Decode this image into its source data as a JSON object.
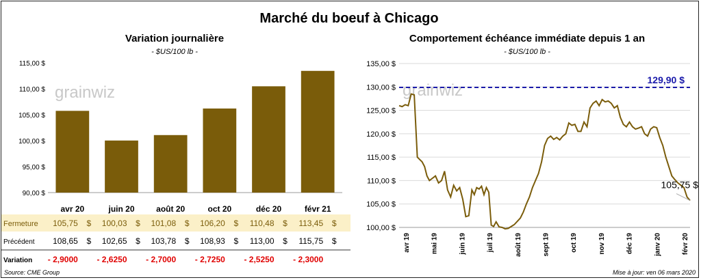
{
  "header": {
    "title": "Marché du boeuf à Chicago",
    "source": "Source: CME Group",
    "updated": "Mise à jour: ven 06 mars 2020",
    "watermark": "grainwiz"
  },
  "chart_data": [
    {
      "type": "bar",
      "title": "Variation journalière",
      "subtitle": "- $US/100 lb -",
      "categories": [
        "avr 20",
        "juin 20",
        "août 20",
        "oct 20",
        "déc 20",
        "févr 21"
      ],
      "values": [
        105.75,
        100.03,
        101.08,
        106.2,
        110.48,
        113.45
      ],
      "ylim": [
        90,
        115
      ],
      "y_ticks": [
        "90,00 $",
        "95,00 $",
        "100,00 $",
        "105,00 $",
        "110,00 $",
        "115,00 $"
      ],
      "bar_color": "#7A5C0A",
      "grid": false
    },
    {
      "type": "table",
      "rows": [
        {
          "label": "Fermeture",
          "values": [
            "105,75",
            "100,03",
            "101,08",
            "106,20",
            "110,48",
            "113,45"
          ],
          "unit": "$",
          "color": "#7A5C0A",
          "background": "#FBF0C8"
        },
        {
          "label": "Précédent",
          "values": [
            "108,65",
            "102,65",
            "103,78",
            "108,93",
            "113,00",
            "115,75"
          ],
          "unit": "$",
          "color": "#000000"
        },
        {
          "label": "Variation",
          "values": [
            "- 2,9000",
            "- 2,6250",
            "- 2,7000",
            "- 2,7250",
            "- 2,5250",
            "- 2,3000"
          ],
          "unit": "",
          "color": "#E00000"
        }
      ]
    },
    {
      "type": "line",
      "title": "Comportement  échéance immédiate depuis 1 an",
      "subtitle": "- $US/100 lb -",
      "ylim": [
        100,
        135
      ],
      "y_ticks": [
        "100,00 $",
        "105,00 $",
        "110,00 $",
        "115,00 $",
        "120,00 $",
        "125,00 $",
        "130,00 $",
        "135,00 $"
      ],
      "x_ticks": [
        "avr 19",
        "mai 19",
        "juin 19",
        "juil 19",
        "août 19",
        "sept 19",
        "oct 19",
        "nov 19",
        "déc 19",
        "janv 20",
        "févr 20"
      ],
      "grid": true,
      "series": [
        {
          "color": "#7A5C0A",
          "x": [
            0,
            0.5,
            1,
            1.5,
            2,
            2.5,
            3,
            3.4,
            3.8,
            4.2,
            4.6,
            5,
            5.5,
            6,
            6.5,
            7,
            7.5,
            8,
            8.5,
            9,
            9.5,
            10,
            10.5,
            11,
            11.5,
            12,
            12.4,
            12.8,
            13.2,
            13.6,
            14,
            14.4,
            14.8,
            15.2,
            15.6,
            16,
            16.5,
            17,
            17.5,
            18,
            18.5,
            19,
            19.5,
            20,
            20.5,
            21,
            21.5,
            22,
            22.5,
            23,
            23.5,
            24,
            24.5,
            25,
            25.5,
            26,
            26.5,
            27,
            27.5,
            28,
            28.5,
            29,
            29.5,
            30,
            30.5,
            31,
            31.5,
            32,
            32.5,
            33,
            33.5,
            34,
            34.5,
            35,
            35.5,
            36,
            36.5,
            37,
            37.5,
            38,
            38.5,
            39,
            39.5,
            40,
            40.5,
            41,
            41.5,
            42,
            42.5,
            43,
            43.5,
            44,
            44.5,
            45,
            45.5,
            46,
            46.5,
            47,
            47.5,
            48
          ],
          "y": [
            126,
            125.8,
            126.2,
            126,
            128.5,
            128.3,
            115,
            114.5,
            114,
            113,
            111,
            110,
            110.5,
            111,
            109.5,
            110,
            112,
            108,
            106.5,
            109,
            107.8,
            108.5,
            106,
            102.3,
            102.5,
            108,
            107,
            108.5,
            108.2,
            108.8,
            107,
            108.5,
            107.5,
            100.5,
            100.2,
            101.2,
            100.1,
            100,
            99.5,
            99.8,
            100.2,
            100.6,
            101.3,
            102,
            103.3,
            105,
            106.5,
            108.5,
            110,
            111.5,
            114,
            117.5,
            119,
            119.5,
            118.8,
            119.2,
            118.7,
            119.5,
            120,
            122.3,
            121.8,
            122,
            120.5,
            120.5,
            122.5,
            121.5,
            125.5,
            126.5,
            127,
            126,
            127.3,
            126.8,
            127,
            126.5,
            125.5,
            126,
            123.5,
            122,
            121.5,
            122.5,
            121.5,
            121,
            121.2,
            121.5,
            120,
            119.5,
            121,
            121.5,
            121.3,
            119.2,
            117.5,
            115,
            113,
            111,
            110.2,
            109.5,
            109,
            108.5,
            106.5,
            105.75
          ],
          "label": "105,75 $"
        }
      ],
      "reference_line": {
        "value": 129.9,
        "label": "129,90 $",
        "color": "#1A1AAA"
      }
    }
  ]
}
